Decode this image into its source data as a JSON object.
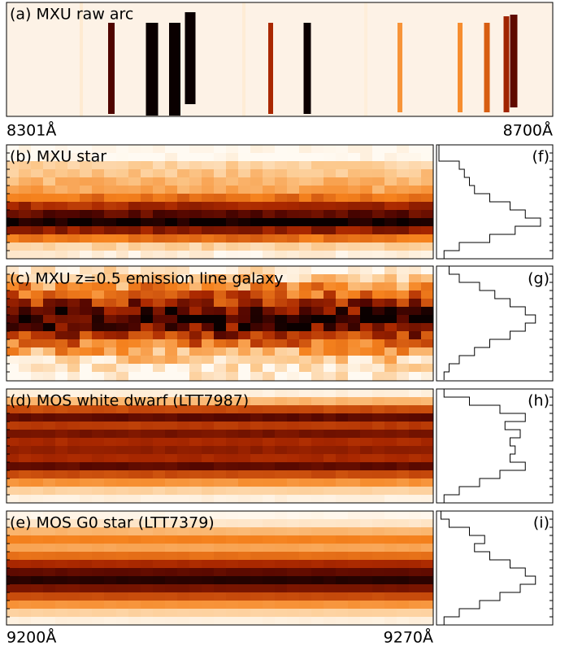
{
  "panels": [
    {
      "label": "(a) MXU raw arc"
    },
    {
      "label": "(b) MXU star"
    },
    {
      "label": "(c) MXU z=0.5 emission line galaxy"
    },
    {
      "label": "(d) MOS white dwarf (LTT7987)"
    },
    {
      "label": "(e) MOS G0 star (LTT7379)"
    }
  ],
  "profile_labels": [
    "(f)",
    "(g)",
    "(h)",
    "(i)"
  ],
  "arc_axis": {
    "left": "8301Å",
    "right": "8700Å"
  },
  "spectrum_axis": {
    "left": "9200Å",
    "right": "9270Å"
  }
}
